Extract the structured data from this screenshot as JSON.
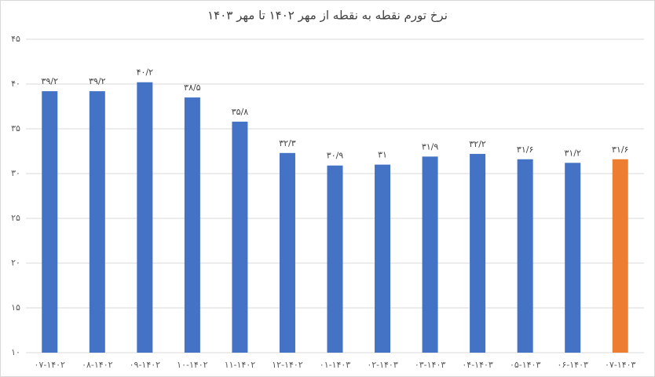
{
  "chart_data": {
    "type": "bar",
    "title": "نرخ تورم نقطه به نقطه از مهر ۱۴۰۲ تا مهر ۱۴۰۳",
    "categories": [
      "۰۷-۱۴۰۲",
      "۰۸-۱۴۰۲",
      "۰۹-۱۴۰۲",
      "۱۰-۱۴۰۲",
      "۱۱-۱۴۰۲",
      "۱۲-۱۴۰۲",
      "۰۱-۱۴۰۳",
      "۰۲-۱۴۰۳",
      "۰۳-۱۴۰۳",
      "۰۴-۱۴۰۳",
      "۰۵-۱۴۰۳",
      "۰۶-۱۴۰۳",
      "۰۷-۱۴۰۳"
    ],
    "values": [
      39.2,
      39.2,
      40.2,
      38.5,
      35.8,
      32.3,
      30.9,
      31,
      31.9,
      32.2,
      31.6,
      31.2,
      31.6
    ],
    "value_labels": [
      "۳۹/۲",
      "۳۹/۲",
      "۴۰/۲",
      "۳۸/۵",
      "۳۵/۸",
      "۳۲/۳",
      "۳۰/۹",
      "۳۱",
      "۳۱/۹",
      "۳۲/۲",
      "۳۱/۶",
      "۳۱/۲",
      "۳۱/۶"
    ],
    "colors": [
      "#4472c4",
      "#4472c4",
      "#4472c4",
      "#4472c4",
      "#4472c4",
      "#4472c4",
      "#4472c4",
      "#4472c4",
      "#4472c4",
      "#4472c4",
      "#4472c4",
      "#4472c4",
      "#ed7d31"
    ],
    "ylim": [
      10,
      45
    ],
    "yticks": [
      {
        "value": 10,
        "label": "۱۰"
      },
      {
        "value": 15,
        "label": "۱۵"
      },
      {
        "value": 20,
        "label": "۲۰"
      },
      {
        "value": 25,
        "label": "۲۵"
      },
      {
        "value": 30,
        "label": "۳۰"
      },
      {
        "value": 35,
        "label": "۳۵"
      },
      {
        "value": 40,
        "label": "۴۰"
      },
      {
        "value": 45,
        "label": "۴۵"
      }
    ],
    "grid": true
  }
}
